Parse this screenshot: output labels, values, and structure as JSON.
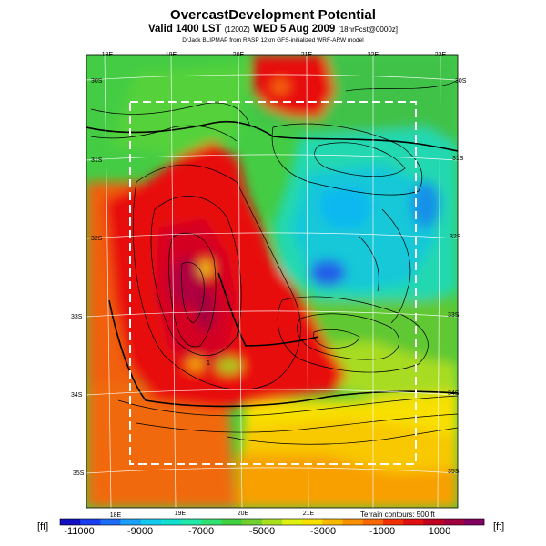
{
  "header": {
    "title": "OvercastDevelopment Potential",
    "valid_prefix": "Valid 1400 LST",
    "valid_utc": "(1200Z)",
    "valid_date": "WED 5 Aug 2009",
    "forecast": "[18hrFcst@0000z]",
    "credit": "DrJack BLIPMAP from RASP 12km GFS-initialized WRF-ARW model"
  },
  "map": {
    "lon_labels_top": [
      "18E",
      "19E",
      "20E",
      "21E",
      "22E",
      "23E"
    ],
    "lon_labels_bottom": [
      "18E",
      "19E",
      "20E",
      "21E"
    ],
    "lat_labels_left": [
      "30S",
      "31S",
      "32S",
      "33S",
      "34S",
      "35S"
    ],
    "lat_labels_right": [
      "30S",
      "31S",
      "32S",
      "33S",
      "34S",
      "35S"
    ],
    "terrain_note": "Terrain contours: 500 ft",
    "contour_marker": "1"
  },
  "colorbar": {
    "unit_left": "[ft]",
    "unit_right": "[ft]",
    "ticks": [
      "-11000",
      "-9000",
      "-7000",
      "-5000",
      "-3000",
      "-1000",
      "1000"
    ],
    "colors": [
      "#1010c0",
      "#1a3cf0",
      "#1c6cf8",
      "#1aa0f8",
      "#14c8f0",
      "#10e0d0",
      "#20e8a8",
      "#30e070",
      "#40d040",
      "#70d030",
      "#a8e020",
      "#e0f010",
      "#f8e000",
      "#f8b800",
      "#f89000",
      "#f86800",
      "#f03000",
      "#e01010",
      "#c00020",
      "#a00040",
      "#800060"
    ]
  }
}
